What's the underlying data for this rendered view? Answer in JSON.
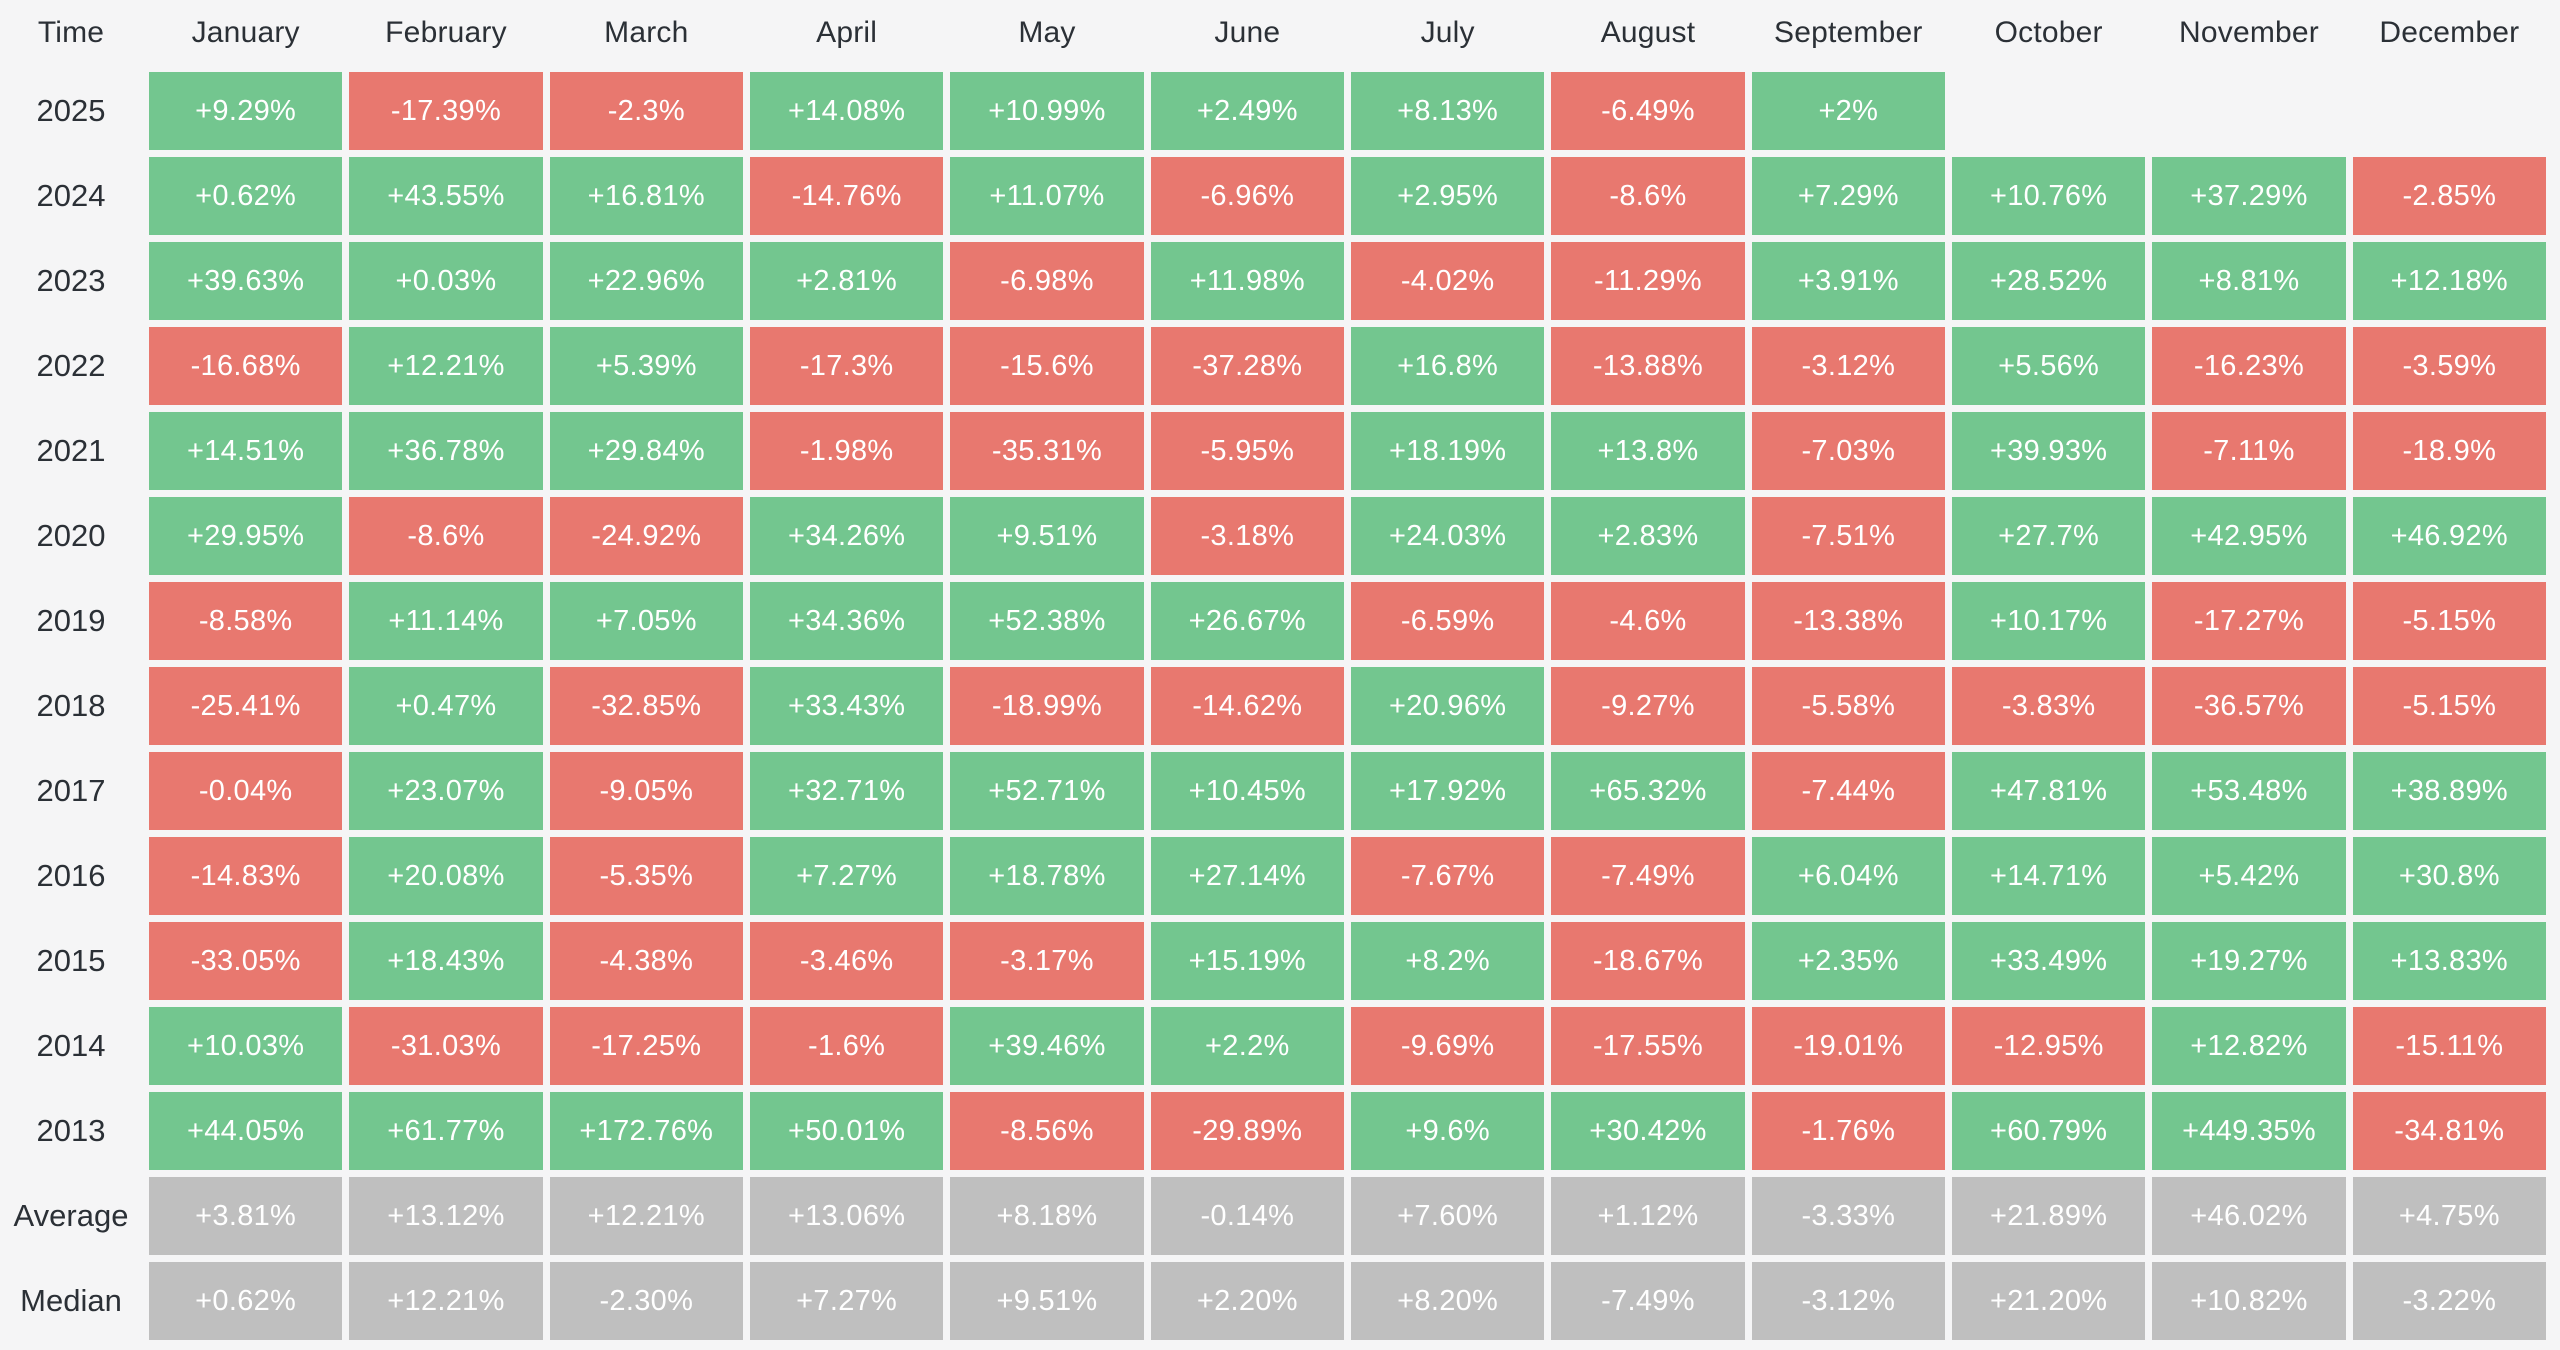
{
  "colors": {
    "background": "#f5f5f6",
    "positive": "#73c68f",
    "negative": "#e8786f",
    "summary": "#bfbfbf",
    "header_text": "#2b3036",
    "cell_text": "#ffffff"
  },
  "chart_data": {
    "type": "heatmap",
    "value_unit": "%",
    "corner_label": "Time",
    "columns": [
      "January",
      "February",
      "March",
      "April",
      "May",
      "June",
      "July",
      "August",
      "September",
      "October",
      "November",
      "December"
    ],
    "rows": [
      {
        "label": "2025",
        "kind": "year",
        "values": [
          "+9.29%",
          "-17.39%",
          "-2.3%",
          "+14.08%",
          "+10.99%",
          "+2.49%",
          "+8.13%",
          "-6.49%",
          "+2%",
          null,
          null,
          null
        ]
      },
      {
        "label": "2024",
        "kind": "year",
        "values": [
          "+0.62%",
          "+43.55%",
          "+16.81%",
          "-14.76%",
          "+11.07%",
          "-6.96%",
          "+2.95%",
          "-8.6%",
          "+7.29%",
          "+10.76%",
          "+37.29%",
          "-2.85%"
        ]
      },
      {
        "label": "2023",
        "kind": "year",
        "values": [
          "+39.63%",
          "+0.03%",
          "+22.96%",
          "+2.81%",
          "-6.98%",
          "+11.98%",
          "-4.02%",
          "-11.29%",
          "+3.91%",
          "+28.52%",
          "+8.81%",
          "+12.18%"
        ]
      },
      {
        "label": "2022",
        "kind": "year",
        "values": [
          "-16.68%",
          "+12.21%",
          "+5.39%",
          "-17.3%",
          "-15.6%",
          "-37.28%",
          "+16.8%",
          "-13.88%",
          "-3.12%",
          "+5.56%",
          "-16.23%",
          "-3.59%"
        ]
      },
      {
        "label": "2021",
        "kind": "year",
        "values": [
          "+14.51%",
          "+36.78%",
          "+29.84%",
          "-1.98%",
          "-35.31%",
          "-5.95%",
          "+18.19%",
          "+13.8%",
          "-7.03%",
          "+39.93%",
          "-7.11%",
          "-18.9%"
        ]
      },
      {
        "label": "2020",
        "kind": "year",
        "values": [
          "+29.95%",
          "-8.6%",
          "-24.92%",
          "+34.26%",
          "+9.51%",
          "-3.18%",
          "+24.03%",
          "+2.83%",
          "-7.51%",
          "+27.7%",
          "+42.95%",
          "+46.92%"
        ]
      },
      {
        "label": "2019",
        "kind": "year",
        "values": [
          "-8.58%",
          "+11.14%",
          "+7.05%",
          "+34.36%",
          "+52.38%",
          "+26.67%",
          "-6.59%",
          "-4.6%",
          "-13.38%",
          "+10.17%",
          "-17.27%",
          "-5.15%"
        ]
      },
      {
        "label": "2018",
        "kind": "year",
        "values": [
          "-25.41%",
          "+0.47%",
          "-32.85%",
          "+33.43%",
          "-18.99%",
          "-14.62%",
          "+20.96%",
          "-9.27%",
          "-5.58%",
          "-3.83%",
          "-36.57%",
          "-5.15%"
        ]
      },
      {
        "label": "2017",
        "kind": "year",
        "values": [
          "-0.04%",
          "+23.07%",
          "-9.05%",
          "+32.71%",
          "+52.71%",
          "+10.45%",
          "+17.92%",
          "+65.32%",
          "-7.44%",
          "+47.81%",
          "+53.48%",
          "+38.89%"
        ]
      },
      {
        "label": "2016",
        "kind": "year",
        "values": [
          "-14.83%",
          "+20.08%",
          "-5.35%",
          "+7.27%",
          "+18.78%",
          "+27.14%",
          "-7.67%",
          "-7.49%",
          "+6.04%",
          "+14.71%",
          "+5.42%",
          "+30.8%"
        ]
      },
      {
        "label": "2015",
        "kind": "year",
        "values": [
          "-33.05%",
          "+18.43%",
          "-4.38%",
          "-3.46%",
          "-3.17%",
          "+15.19%",
          "+8.2%",
          "-18.67%",
          "+2.35%",
          "+33.49%",
          "+19.27%",
          "+13.83%"
        ]
      },
      {
        "label": "2014",
        "kind": "year",
        "values": [
          "+10.03%",
          "-31.03%",
          "-17.25%",
          "-1.6%",
          "+39.46%",
          "+2.2%",
          "-9.69%",
          "-17.55%",
          "-19.01%",
          "-12.95%",
          "+12.82%",
          "-15.11%"
        ]
      },
      {
        "label": "2013",
        "kind": "year",
        "values": [
          "+44.05%",
          "+61.77%",
          "+172.76%",
          "+50.01%",
          "-8.56%",
          "-29.89%",
          "+9.6%",
          "+30.42%",
          "-1.76%",
          "+60.79%",
          "+449.35%",
          "-34.81%"
        ]
      },
      {
        "label": "Average",
        "kind": "summary",
        "values": [
          "+3.81%",
          "+13.12%",
          "+12.21%",
          "+13.06%",
          "+8.18%",
          "-0.14%",
          "+7.60%",
          "+1.12%",
          "-3.33%",
          "+21.89%",
          "+46.02%",
          "+4.75%"
        ]
      },
      {
        "label": "Median",
        "kind": "summary",
        "values": [
          "+0.62%",
          "+12.21%",
          "-2.30%",
          "+7.27%",
          "+9.51%",
          "+2.20%",
          "+8.20%",
          "-7.49%",
          "-3.12%",
          "+21.20%",
          "+10.82%",
          "-3.22%"
        ]
      }
    ]
  }
}
